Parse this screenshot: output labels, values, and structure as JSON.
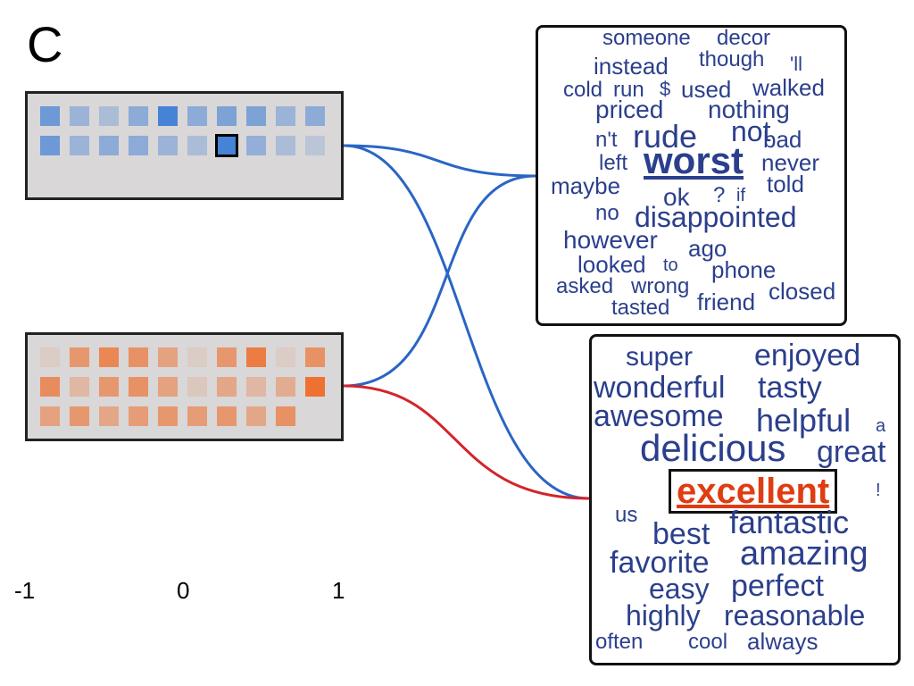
{
  "panel_label": "C",
  "colors": {
    "negative_link": "#2a65c4",
    "positive_link": "#d4242a",
    "neg_word": "#2b3f8c",
    "highlight_word": "#e03c12",
    "cluster_bg": "#d9d7d7"
  },
  "top_cluster": {
    "rows": [
      [
        0.7,
        0.4,
        0.3,
        0.5,
        0.95,
        0.5,
        0.6,
        0.6,
        0.4,
        0.5
      ],
      [
        0.7,
        0.4,
        0.5,
        0.5,
        0.4,
        0.3,
        0.95,
        0.45,
        0.3,
        0.2
      ]
    ],
    "selected_cell": [
      1,
      6
    ]
  },
  "bottom_cluster": {
    "rows": [
      [
        0.1,
        0.6,
        0.75,
        0.65,
        0.5,
        0.1,
        0.6,
        0.85,
        0.1,
        0.65
      ],
      [
        0.7,
        0.3,
        0.6,
        0.65,
        0.5,
        0.15,
        0.45,
        0.3,
        0.4,
        0.95
      ],
      [
        0.5,
        0.6,
        0.45,
        0.55,
        0.6,
        0.55,
        0.6,
        0.45,
        0.65,
        0.0
      ]
    ]
  },
  "negative_words": [
    "someone",
    "decor",
    "instead",
    "though",
    "'ll",
    "cold",
    "run",
    "$",
    "used",
    "walked",
    "priced",
    "nothing",
    "n't",
    "rude",
    "not",
    "bad",
    "left",
    "worst",
    "never",
    "maybe",
    "ok",
    "?",
    "if",
    "told",
    "no",
    "disappointed",
    "however",
    "ago",
    "looked",
    "to",
    "phone",
    "asked",
    "wrong",
    "closed",
    "tasted",
    "friend"
  ],
  "positive_words": [
    "super",
    "enjoyed",
    "wonderful",
    "tasty",
    "awesome",
    "helpful",
    "a",
    "delicious",
    "great",
    "excellent",
    "!",
    "us",
    "best",
    "fantastic",
    "favorite",
    "amazing",
    "easy",
    "perfect",
    "highly",
    "reasonable",
    "often",
    "cool",
    "always"
  ],
  "scale": {
    "min_label": "-1",
    "mid_label": "0",
    "max_label": "1"
  }
}
